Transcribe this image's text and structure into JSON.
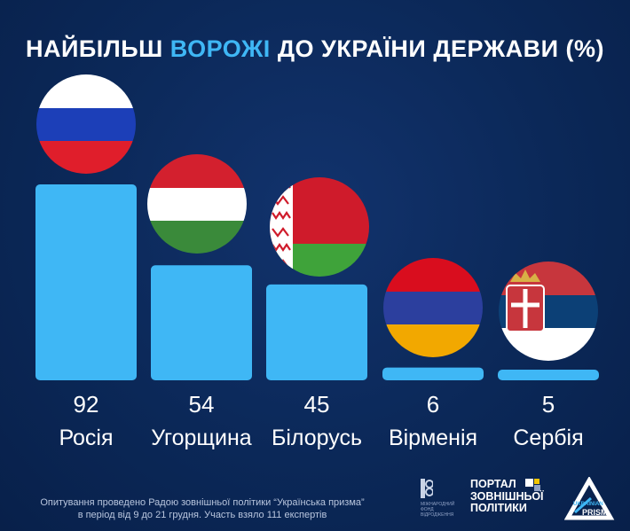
{
  "title": {
    "before": "НАЙБІЛЬШ ",
    "highlight": "ВОРОЖІ",
    "after": " ДО УКРАЇНИ ДЕРЖАВИ (%)"
  },
  "colors": {
    "background": "#0b2858",
    "bar": "#3fb7f5",
    "highlight": "#3fb7f5",
    "text": "#ffffff"
  },
  "chart_data": {
    "type": "bar",
    "title": "НАЙБІЛЬШ ВОРОЖІ ДО УКРАЇНИ ДЕРЖАВИ (%)",
    "categories": [
      "Росія",
      "Угорщина",
      "Білорусь",
      "Вірменія",
      "Сербія"
    ],
    "values": [
      92,
      54,
      45,
      6,
      5
    ],
    "flag_icons": [
      "russia-flag-icon",
      "hungary-flag-icon",
      "belarus-flag-icon",
      "armenia-flag-icon",
      "serbia-flag-icon"
    ],
    "xlabel": "",
    "ylabel": "",
    "ylim": [
      0,
      92
    ],
    "grid": false,
    "legend": "none"
  },
  "footnote": {
    "line1": "Опитування проведено Радою зовнішньої політики “Українська призма”",
    "line2": "в період від 9 до 21 грудня. Участь взяло 111 експертів"
  },
  "logos": {
    "irf_text_1": "МІЖНАРОДНИЙ",
    "irf_text_2": "ФОНД",
    "irf_text_3": "ВІДРОДЖЕННЯ",
    "portal_line1": "ПОРТАЛ",
    "portal_line2": "ЗОВНІШНЬОЇ",
    "portal_line3": "ПОЛІТИКИ",
    "prism_line1": "UKRAINIAN",
    "prism_line2": "PRISM"
  }
}
